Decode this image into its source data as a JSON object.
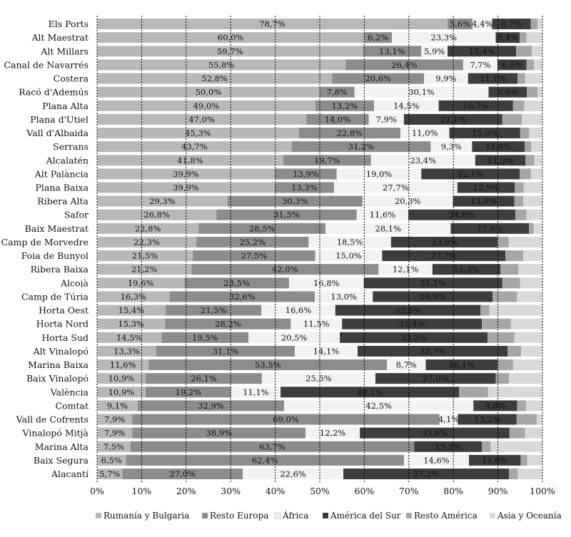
{
  "chart_data": {
    "type": "bar",
    "orientation": "horizontal",
    "stacked": true,
    "percent": true,
    "xlim": [
      0,
      100
    ],
    "xticks": [
      "0%",
      "10%",
      "20%",
      "30%",
      "40%",
      "50%",
      "60%",
      "70%",
      "80%",
      "90%",
      "100%"
    ],
    "grid": "vertical dotted",
    "legend_position": "bottom",
    "categories": [
      "Els Ports",
      "Alt Maestrat",
      "Alt Millars",
      "Canal de Navarrés",
      "Costera",
      "Racó d'Ademús",
      "Plana Alta",
      "Plana d'Utiel",
      "Vall d'Albaida",
      "Serrans",
      "Alcalatén",
      "Alt Palància",
      "Plana Baixa",
      "Ribera Alta",
      "Safor",
      "Baix Maestrat",
      "Camp de Morvedre",
      "Foia de Bunyol",
      "Ribera Baixa",
      "Alcoià",
      "Camp de Túria",
      "Horta Oest",
      "Horta Nord",
      "Horta Sud",
      "Alt Vinalopó",
      "Marina Baixa",
      "Baix Vinalopó",
      "València",
      "Comtat",
      "Vall de Cofrents",
      "Vinalopó Mitjà",
      "Marina Alta",
      "Baix Segura",
      "Alacantí"
    ],
    "series": [
      {
        "name": "Rumanía y Bulgaria",
        "color": "#b8b8b8",
        "label_color": "#111111",
        "values": [
          78.7,
          60.0,
          59.7,
          55.8,
          52.8,
          50.0,
          49.0,
          47.0,
          45.3,
          43.7,
          41.8,
          39.9,
          39.9,
          29.3,
          26.8,
          22.8,
          22.3,
          21.5,
          21.2,
          19.6,
          16.3,
          15.4,
          15.3,
          14.5,
          13.3,
          11.6,
          10.9,
          10.9,
          9.1,
          7.9,
          7.9,
          7.5,
          6.5,
          5.7
        ],
        "labels": [
          "78,7%",
          "60,0%",
          "59,7%",
          "55,8%",
          "52,8%",
          "50,0%",
          "49,0%",
          "47,0%",
          "45,3%",
          "43,7%",
          "41,8%",
          "39,9%",
          "39,9%",
          "29,3%",
          "26,8%",
          "22,8%",
          "22,3%",
          "21,5%",
          "21,2%",
          "19,6%",
          "16,3%",
          "15,4%",
          "15,3%",
          "14,5%",
          "13,3%",
          "11,6%",
          "10,9%",
          "10,9%",
          "9,1%",
          "7,9%",
          "7,9%",
          "7,5%",
          "6,5%",
          "5,7%"
        ]
      },
      {
        "name": "Resto Europa",
        "color": "#8c8c8c",
        "label_color": "#111111",
        "values": [
          5.6,
          6.2,
          13.1,
          26.4,
          20.6,
          7.8,
          13.2,
          14.0,
          22.8,
          31.2,
          19.7,
          13.9,
          13.3,
          30.3,
          31.5,
          28.5,
          25.2,
          27.5,
          42.0,
          23.5,
          32.6,
          21.5,
          28.2,
          19.5,
          31.1,
          53.5,
          26.1,
          19.2,
          32.9,
          69.0,
          38.9,
          63.7,
          62.4,
          27.0
        ],
        "labels": [
          "5,6%",
          "6,2%",
          "13,1%",
          "26,4%",
          "20,6%",
          "7,8%",
          "13,2%",
          "14,0%",
          "22,8%",
          "31,2%",
          "19,7%",
          "13,9%",
          "13,3%",
          "30,3%",
          "31,5%",
          "28,5%",
          "25,2%",
          "27,5%",
          "42,0%",
          "23,5%",
          "32,6%",
          "21,5%",
          "28,2%",
          "19,5%",
          "31,1%",
          "53,5%",
          "26,1%",
          "19,2%",
          "32,9%",
          "69,0%",
          "38,9%",
          "63,7%",
          "62,4%",
          "27,0%"
        ]
      },
      {
        "name": "África",
        "color": "#f2f2f2",
        "label_color": "#111111",
        "values": [
          4.4,
          23.3,
          5.9,
          7.7,
          9.9,
          30.1,
          14.5,
          7.9,
          11.0,
          9.3,
          23.4,
          19.0,
          27.7,
          20.3,
          11.6,
          28.1,
          18.5,
          15.0,
          12.1,
          16.8,
          13.0,
          16.6,
          11.5,
          20.5,
          14.1,
          8.7,
          25.5,
          11.1,
          42.5,
          4.1,
          12.2,
          0,
          14.6,
          22.6
        ],
        "labels": [
          "4,4%",
          "23,3%",
          "5,9%",
          "7,7%",
          "9,9%",
          "30,1%",
          "14,5%",
          "7,9%",
          "11,0%",
          "9,3%",
          "23,4%",
          "19,0%",
          "27,7%",
          "20,3%",
          "11,6%",
          "28,1%",
          "18,5%",
          "15,0%",
          "12,1%",
          "16,8%",
          "13,0%",
          "16,6%",
          "11,5%",
          "20,5%",
          "14,1%",
          "8,7%",
          "25,5%",
          "11,1%",
          "42,5%",
          "4,1%",
          "12,2%",
          "",
          "14,6%",
          "22,6%"
        ]
      },
      {
        "name": "América del Sur",
        "color": "#3d3d3d",
        "label_color": "#ffffff",
        "values": [
          8.7,
          5.4,
          15.4,
          6.5,
          11.1,
          8.6,
          16.7,
          22.1,
          15.9,
          11.8,
          11.3,
          22.1,
          12.9,
          13.8,
          24.0,
          17.6,
          23.9,
          27.7,
          15.3,
          31.1,
          26.9,
          32.6,
          31.4,
          33.2,
          33.7,
          16.1,
          27.0,
          40.1,
          9.8,
          13.2,
          33.6,
          15.2,
          11.6,
          37.2
        ],
        "labels": [
          "8,7%",
          "5,4%",
          "15,4%",
          "6,5%",
          "11,1%",
          "8,6%",
          "16,7%",
          "22,1%",
          "15,9%",
          "11,8%",
          "11,3%",
          "22,1%",
          "12,9%",
          "13,8%",
          "24,0%",
          "17,6%",
          "23,9%",
          "27,7%",
          "15,3%",
          "31,1%",
          "26,9%",
          "32,6%",
          "31,4%",
          "33,2%",
          "33,7%",
          "16,1%",
          "27,0%",
          "40,1%",
          "9,8%",
          "13,2%",
          "33,6%",
          "15,2%",
          "11,6%",
          "37,2%"
        ]
      },
      {
        "name": "Resto América",
        "color": "#a6a6a6",
        "label_color": "#111111",
        "values": [
          1.5,
          1.5,
          3.5,
          1.7,
          1.7,
          2.4,
          2.5,
          4.4,
          2.0,
          1.5,
          2.0,
          2.5,
          2.0,
          2.0,
          2.5,
          1.0,
          2.5,
          4.0,
          4.0,
          4.0,
          5.5,
          2.0,
          6.5,
          6.0,
          3.0,
          3.5,
          3.0,
          6.5,
          2.0,
          4.5,
          3.5,
          2.0,
          1.5,
          2.0
        ],
        "labels": []
      },
      {
        "name": "Asia y Oceanía",
        "color": "#d9d9d9",
        "label_color": "#111111",
        "values": [
          1.1,
          3.6,
          2.4,
          1.9,
          3.9,
          1.1,
          4.1,
          4.6,
          3.0,
          2.5,
          1.8,
          2.6,
          4.2,
          4.3,
          3.6,
          2.0,
          7.6,
          4.3,
          5.4,
          5.0,
          5.7,
          11.9,
          7.1,
          6.3,
          4.8,
          6.6,
          7.5,
          12.2,
          3.7,
          1.3,
          3.9,
          11.6,
          3.4,
          5.5
        ],
        "labels": []
      }
    ]
  }
}
